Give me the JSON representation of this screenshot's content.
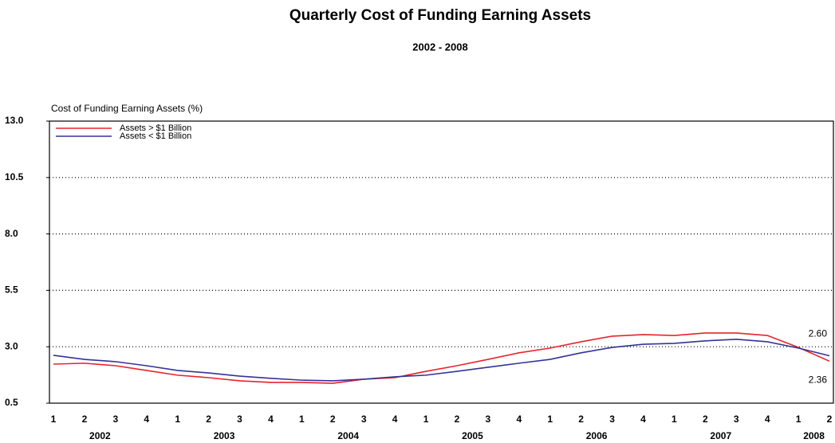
{
  "chart_data": {
    "type": "line",
    "title": "Quarterly Cost of Funding Earning Assets",
    "subtitle": "2002 - 2008",
    "y_label": "Cost of Funding Earning Assets (%)",
    "categories": [
      "1",
      "2",
      "3",
      "4",
      "1",
      "2",
      "3",
      "4",
      "1",
      "2",
      "3",
      "4",
      "1",
      "2",
      "3",
      "4",
      "1",
      "2",
      "3",
      "4",
      "1",
      "2",
      "3",
      "4",
      "1",
      "2"
    ],
    "years": [
      "2002",
      "2003",
      "2004",
      "2005",
      "2006",
      "2007",
      "2008"
    ],
    "ylim": [
      0.5,
      13.0
    ],
    "yticks": [
      0.5,
      {
        "value": 3,
        "label": "3.0"
      },
      5.5,
      {
        "value": 8,
        "label": "8.0"
      },
      10.5,
      {
        "value": 13,
        "label": "13.0"
      }
    ],
    "grid": true,
    "legend": "top-left",
    "series": [
      {
        "name": "Assets > $1 Billion",
        "color": "#e8232a",
        "values": [
          2.23,
          2.27,
          2.16,
          1.95,
          1.74,
          1.63,
          1.49,
          1.42,
          1.42,
          1.38,
          1.56,
          1.63,
          1.91,
          2.16,
          2.44,
          2.73,
          2.94,
          3.22,
          3.47,
          3.54,
          3.5,
          3.61,
          3.61,
          3.5,
          2.97,
          2.36
        ],
        "value_labels": [
          null,
          null,
          null,
          null,
          null,
          null,
          null,
          null,
          null,
          null,
          null,
          null,
          null,
          null,
          null,
          null,
          null,
          null,
          null,
          null,
          null,
          null,
          null,
          null,
          null,
          "2.36"
        ]
      },
      {
        "name": "Assets < $1 Billion",
        "color": "#333399",
        "values": [
          2.62,
          2.44,
          2.34,
          2.16,
          1.95,
          1.84,
          1.7,
          1.6,
          1.52,
          1.49,
          1.56,
          1.67,
          1.74,
          1.91,
          2.09,
          2.27,
          2.44,
          2.73,
          2.97,
          3.11,
          3.15,
          3.26,
          3.33,
          3.22,
          2.94,
          2.6
        ],
        "value_labels": [
          null,
          null,
          null,
          null,
          null,
          null,
          null,
          null,
          null,
          null,
          null,
          null,
          null,
          null,
          null,
          null,
          null,
          null,
          null,
          null,
          null,
          null,
          null,
          null,
          null,
          "2.60"
        ]
      }
    ]
  }
}
